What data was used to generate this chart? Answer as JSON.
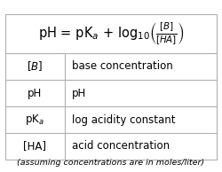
{
  "rows": [
    [
      "$[B]$",
      "base concentration"
    ],
    [
      "pH",
      "pH"
    ],
    [
      "pK$_a$",
      "log acidity constant"
    ],
    [
      "[HA]",
      "acid concentration"
    ]
  ],
  "footer": "(assuming concentrations are in moles/liter)",
  "bg_color": "#ffffff",
  "border_color": "#b0b0b0",
  "text_color": "#000000",
  "font_size": 8.5,
  "title_font_size": 10.5,
  "footer_font_size": 6.8,
  "col_split": 0.28
}
